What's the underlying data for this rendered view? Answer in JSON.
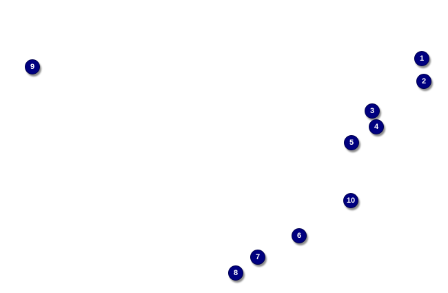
{
  "marker_color": "#00007f",
  "markers": [
    {
      "label": "1"
    },
    {
      "label": "2"
    },
    {
      "label": "3"
    },
    {
      "label": "4"
    },
    {
      "label": "5"
    },
    {
      "label": "6"
    },
    {
      "label": "7"
    },
    {
      "label": "8"
    },
    {
      "label": "9"
    },
    {
      "label": "10"
    }
  ]
}
